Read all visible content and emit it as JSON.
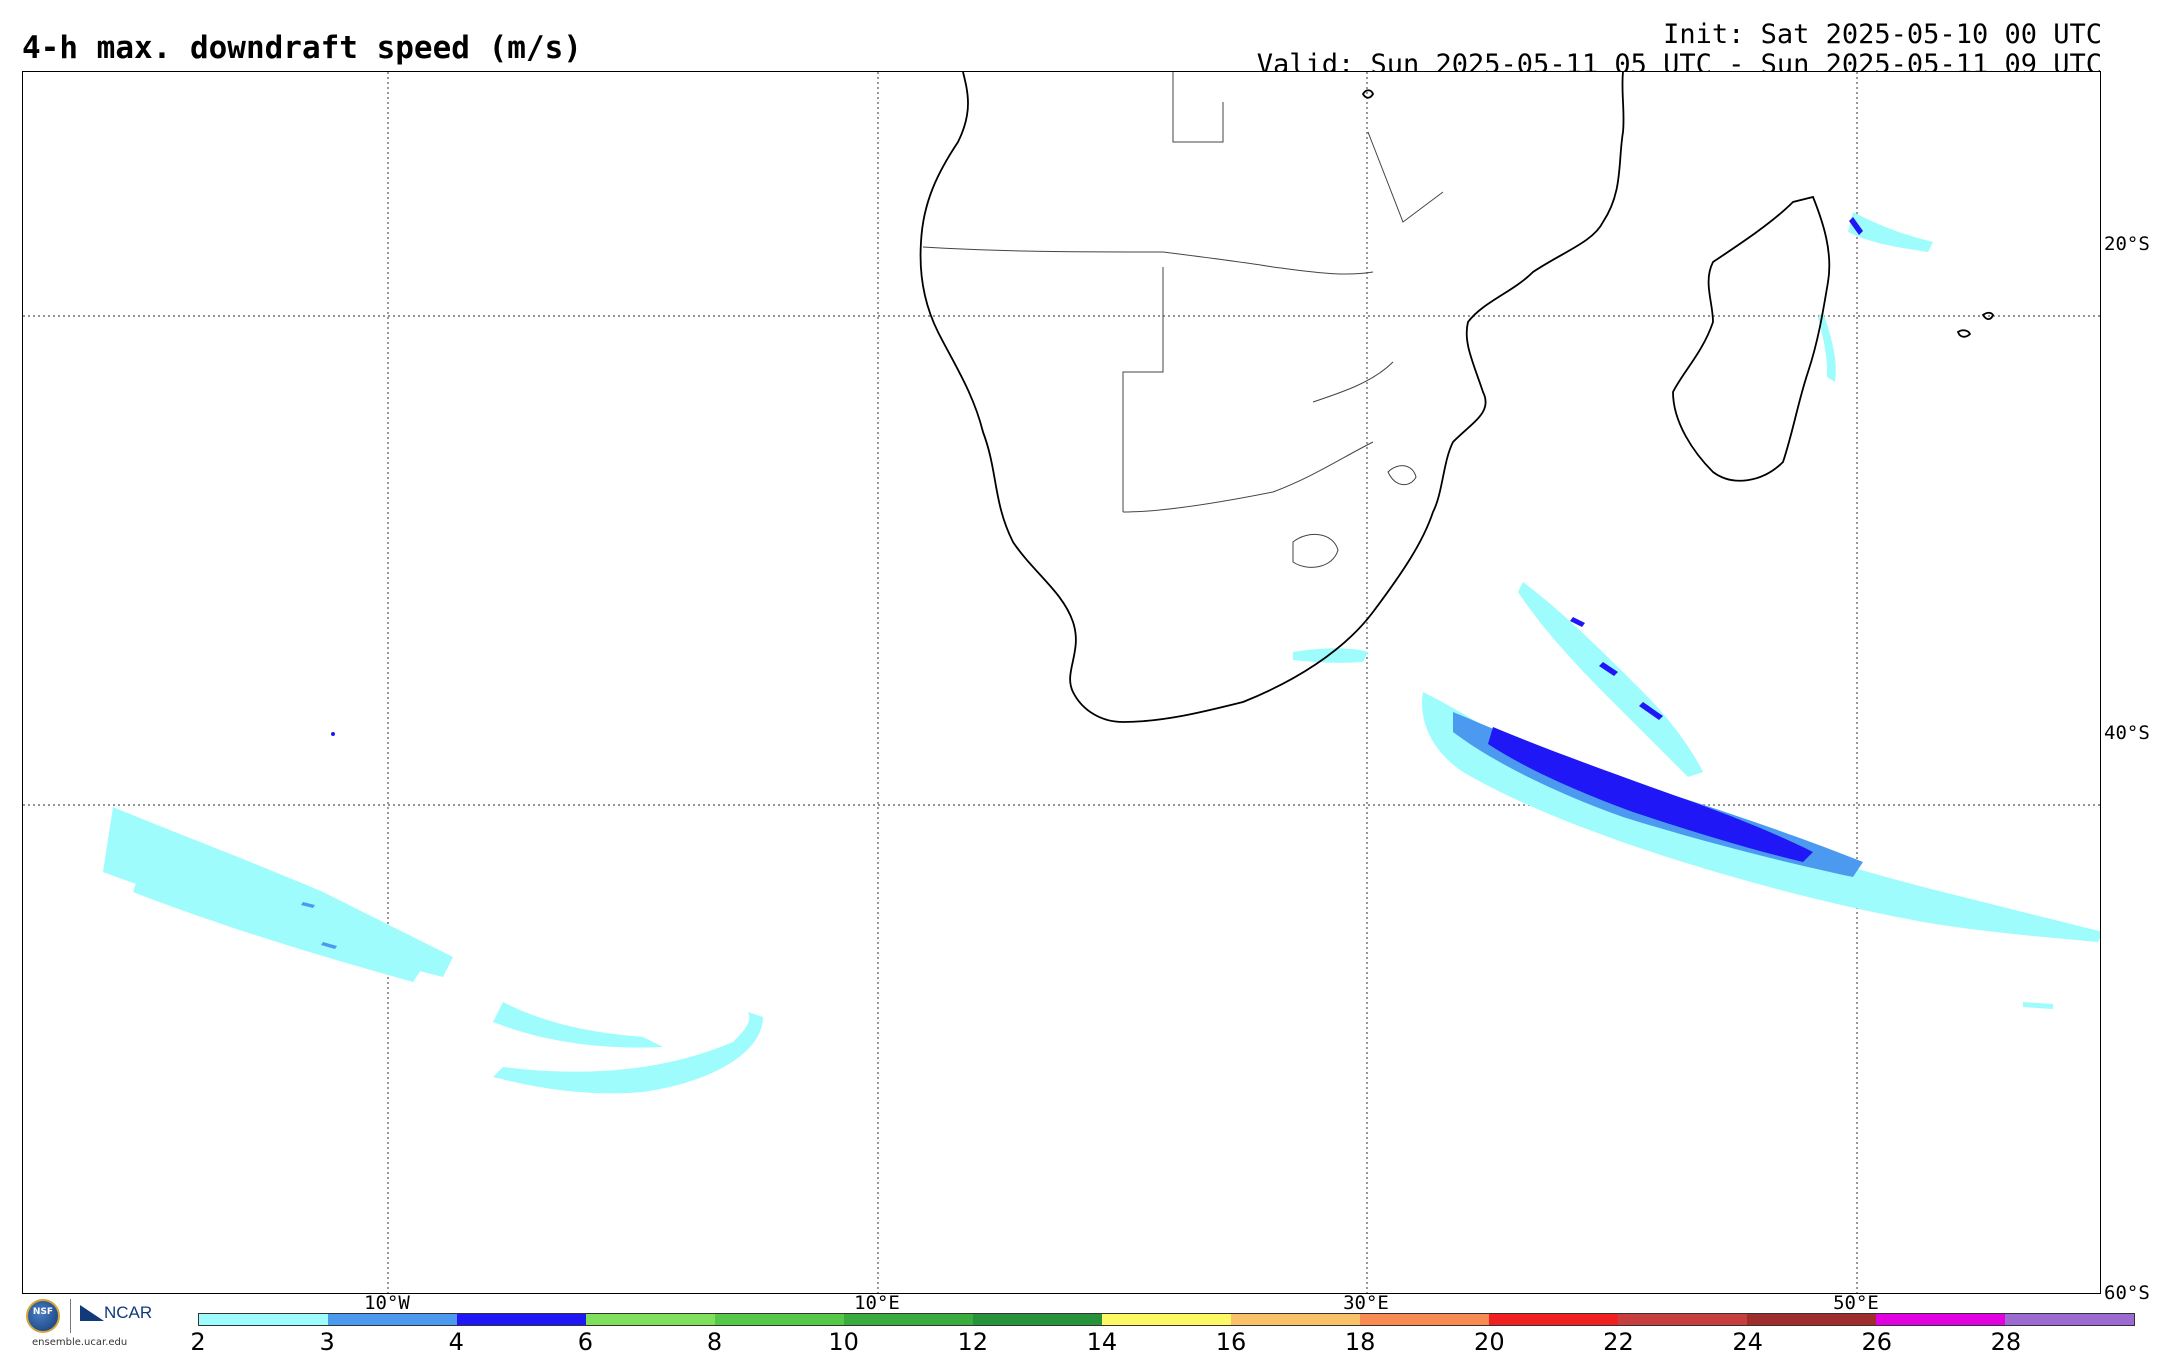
{
  "header": {
    "title": "4-h max. downdraft speed (m/s)",
    "init": "Init: Sat 2025-05-10 00 UTC",
    "valid": "Valid: Sun 2025-05-11 05 UTC - Sun 2025-05-11 09 UTC"
  },
  "map": {
    "projection": "cylindrical",
    "lon_range": [
      -25,
      60
    ],
    "lat_range": [
      -60,
      -10
    ],
    "lat_labels": [
      "20°S",
      "40°S",
      "60°S"
    ],
    "lon_labels": [
      "10°W",
      "10°E",
      "30°E",
      "50°E"
    ],
    "gridline_style": "dotted",
    "land_fill": "none",
    "coastline_color": "#000000"
  },
  "logos": {
    "nsf": "NSF",
    "ncar": "NCAR",
    "url": "ensemble.ucar.edu"
  },
  "colorbar": {
    "colors": [
      "#9ffcfd",
      "#4c9af0",
      "#1f17f5",
      "#7fe05c",
      "#56c848",
      "#3aab3d",
      "#26933a",
      "#fdf965",
      "#fbc168",
      "#f88a52",
      "#f21f21",
      "#c73e3e",
      "#a02d2d",
      "#e000e0",
      "#9b6bd2"
    ],
    "tick_labels": [
      "2",
      "3",
      "4",
      "6",
      "8",
      "10",
      "12",
      "14",
      "16",
      "18",
      "20",
      "22",
      "24",
      "26",
      "28"
    ]
  }
}
